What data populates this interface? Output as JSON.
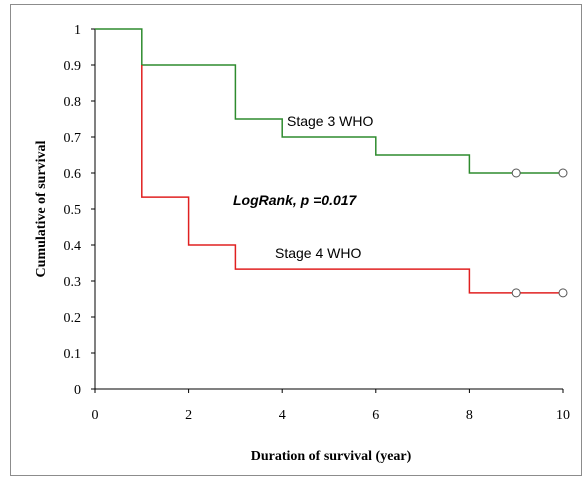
{
  "chart_data": {
    "type": "line",
    "title": "",
    "xlabel": "Duration of survival (year)",
    "ylabel": "Cumulative of survival",
    "xlim": [
      0,
      10
    ],
    "ylim": [
      0,
      1
    ],
    "x_ticks": [
      "0",
      "2",
      "4",
      "6",
      "8",
      "10"
    ],
    "y_ticks": [
      "0",
      "0.1",
      "0.2",
      "0.3",
      "0.4",
      "0.5",
      "0.6",
      "0.7",
      "0.8",
      "0.9",
      "1"
    ],
    "grid": false,
    "step": true,
    "series": [
      {
        "name": "Stage 3 WHO",
        "color": "#2e8b2e",
        "x": [
          0,
          1,
          3,
          4,
          6,
          8,
          10
        ],
        "y": [
          1,
          0.9,
          0.75,
          0.7,
          0.65,
          0.6,
          0.6
        ],
        "censored": [
          [
            9,
            0.6
          ],
          [
            10,
            0.6
          ]
        ]
      },
      {
        "name": "Stage 4 WHO",
        "color": "#e02020",
        "x": [
          1,
          2,
          3,
          8,
          10
        ],
        "y": [
          0.533,
          0.4,
          0.333,
          0.267,
          0.267
        ],
        "censored": [
          [
            9,
            0.267
          ],
          [
            10,
            0.267
          ]
        ]
      }
    ],
    "annotations": [
      "LogRank, p =0.017"
    ]
  }
}
